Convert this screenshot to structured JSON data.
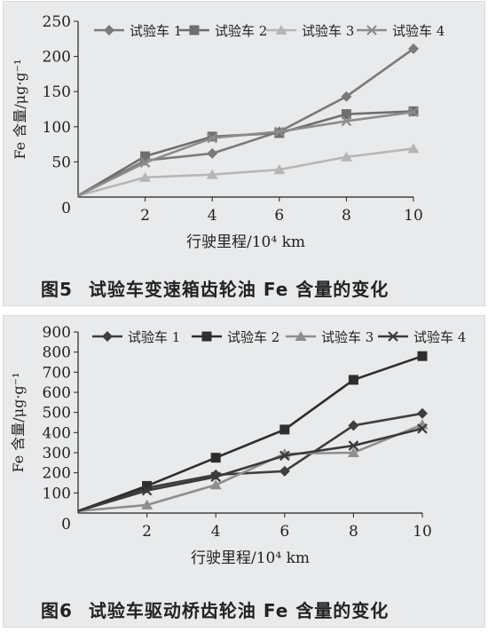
{
  "colors": {
    "series": [
      "#7a7a7a",
      "#6e6e6e",
      "#b6b6b6",
      "#8c8c8c"
    ],
    "series2": [
      "#3e3e3e",
      "#2e2e2e",
      "#8e8e8e",
      "#3a3a3a"
    ],
    "axis": "#222222",
    "panel_bg": "#e9eaeb"
  },
  "charts": {
    "fig5": {
      "caption_label": "图5",
      "caption_text": "试验车变速箱齿轮油 Fe 含量的变化"
    },
    "fig6": {
      "caption_label": "图6",
      "caption_text": "试验车驱动桥齿轮油 Fe 含量的变化"
    }
  },
  "chart_data": [
    {
      "type": "line",
      "xlabel": "行驶里程/10⁴ km",
      "ylabel": "Fe 含量/μg·g⁻¹",
      "x": [
        0,
        2,
        4,
        6,
        8,
        10
      ],
      "xticks": [
        "2",
        "4",
        "6",
        "8",
        "10"
      ],
      "yticks": [
        "0",
        "50",
        "100",
        "150",
        "200",
        "250"
      ],
      "xlim": [
        0,
        10
      ],
      "ylim": [
        0,
        250
      ],
      "legend": "top, horizontal",
      "series": [
        {
          "name": "试验车 1",
          "marker": "diamond",
          "values": [
            2,
            52,
            62,
            93,
            143,
            211
          ]
        },
        {
          "name": "试验车 2",
          "marker": "square",
          "values": [
            2,
            58,
            86,
            91,
            118,
            122
          ]
        },
        {
          "name": "试验车 3",
          "marker": "triangle",
          "values": [
            2,
            28,
            32,
            39,
            57,
            69
          ]
        },
        {
          "name": "试验车 4",
          "marker": "x",
          "values": [
            2,
            49,
            84,
            93,
            108,
            121
          ]
        }
      ]
    },
    {
      "type": "line",
      "xlabel": "行驶里程/10⁴ km",
      "ylabel": "Fe 含量/μg·g⁻¹",
      "x": [
        0,
        2,
        4,
        6,
        8,
        10
      ],
      "xticks": [
        "2",
        "4",
        "6",
        "8",
        "10"
      ],
      "yticks": [
        "0",
        "100",
        "200",
        "300",
        "400",
        "500",
        "600",
        "700",
        "800",
        "900"
      ],
      "xlim": [
        0,
        10
      ],
      "ylim": [
        0,
        900
      ],
      "legend": "top, horizontal",
      "series": [
        {
          "name": "试验车 1",
          "marker": "diamond",
          "values": [
            10,
            125,
            190,
            208,
            435,
            495
          ]
        },
        {
          "name": "试验车 2",
          "marker": "square",
          "values": [
            10,
            135,
            275,
            415,
            662,
            780
          ]
        },
        {
          "name": "试验车 3",
          "marker": "triangle",
          "values": [
            10,
            40,
            140,
            295,
            300,
            440
          ]
        },
        {
          "name": "试验车 4",
          "marker": "x",
          "values": [
            10,
            112,
            180,
            285,
            335,
            420
          ]
        }
      ]
    }
  ]
}
